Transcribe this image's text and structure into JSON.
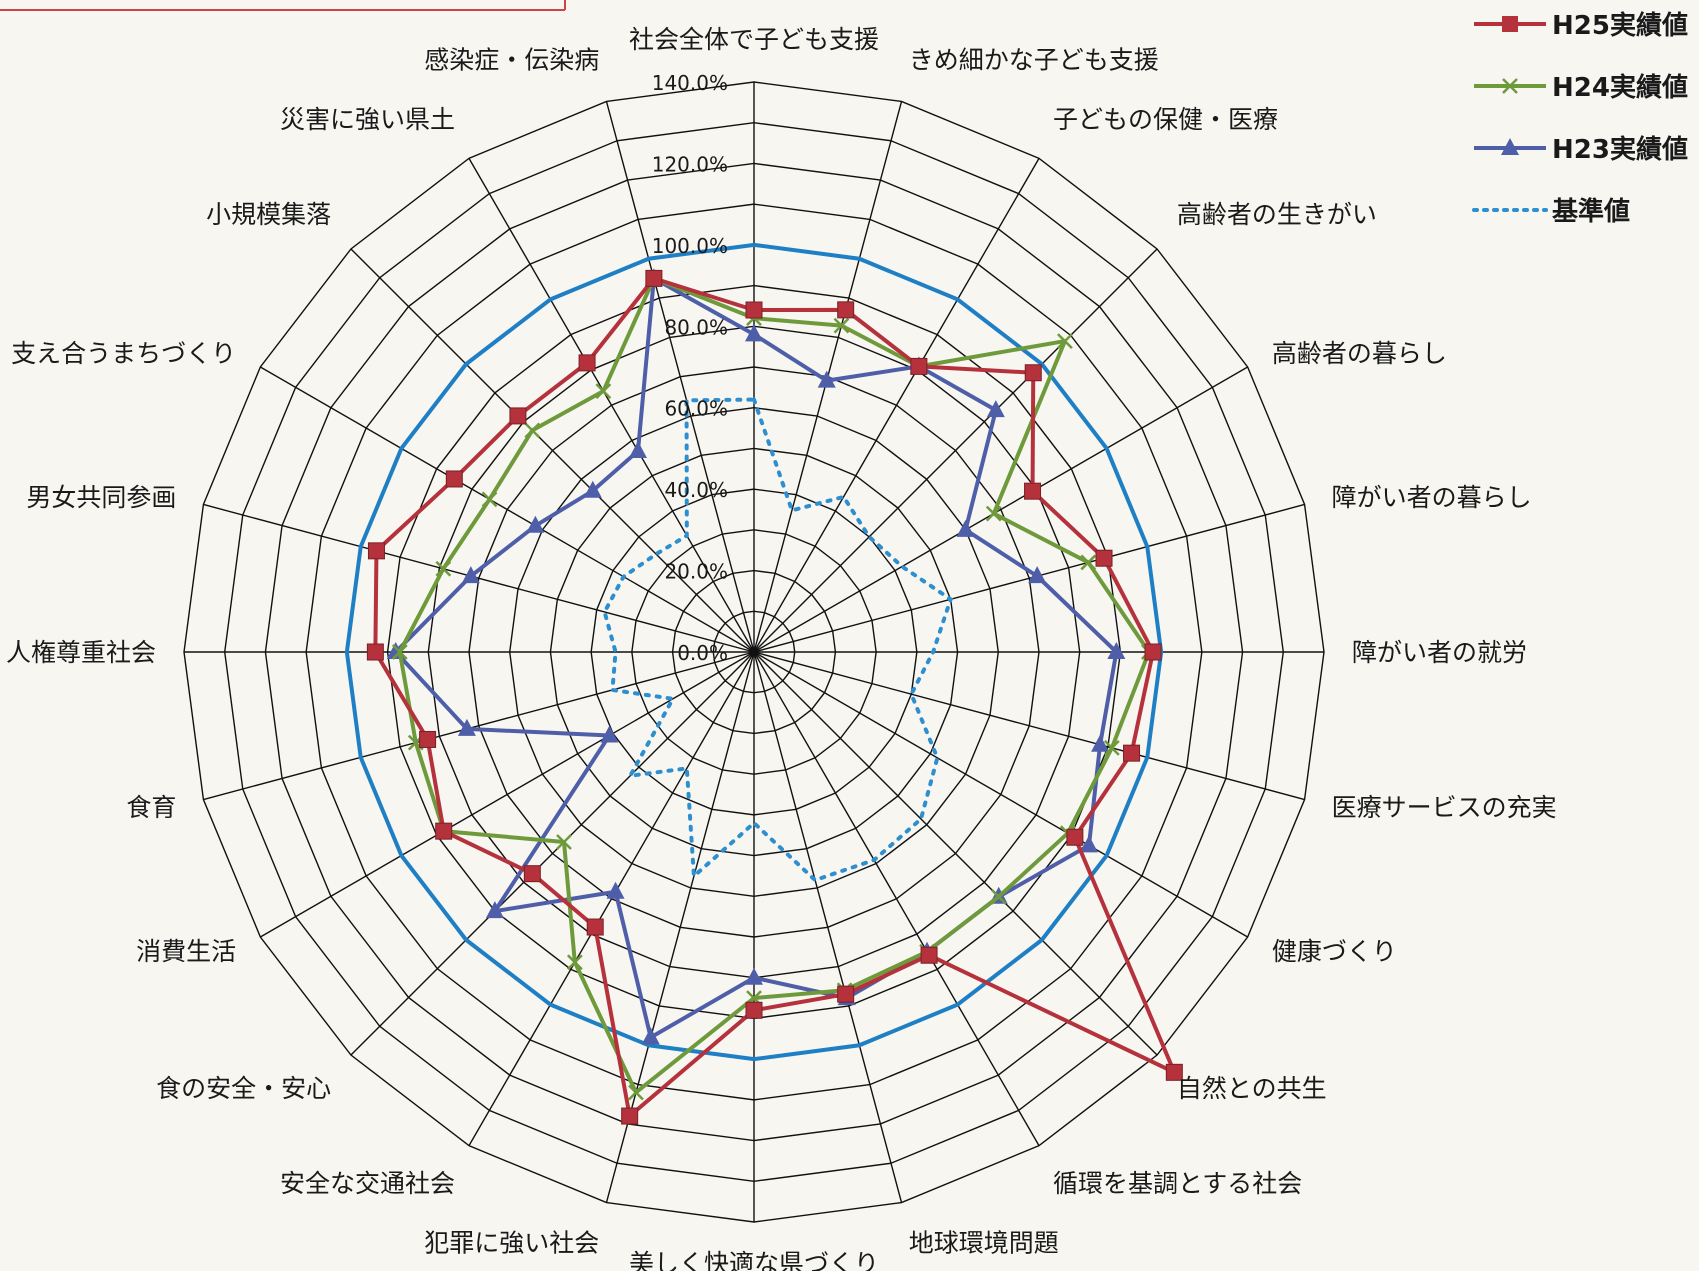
{
  "chart_data": {
    "type": "radar",
    "title": "",
    "categories": [
      "社会全体で子ども支援",
      "きめ細かな子ども支援",
      "子どもの保健・医療",
      "高齢者の生きがい",
      "高齢者の暮らし",
      "障がい者の暮らし",
      "障がい者の就労",
      "医療サービスの充実",
      "健康づくり",
      "自然との共生",
      "循環を基調とする社会",
      "地球環境問題",
      "美しく快適な県づくり",
      "犯罪に強い社会",
      "安全な交通社会",
      "食の安全・安心",
      "消費生活",
      "食育",
      "人権尊重社会",
      "男女共同参画",
      "支え合うまちづくり",
      "小規模集落",
      "災害に強い県土",
      "感染症・伝染病"
    ],
    "tick_labels": [
      "0.0%",
      "20.0%",
      "40.0%",
      "60.0%",
      "80.0%",
      "100.0%",
      "120.0%",
      "140.0%"
    ],
    "rmax": 140,
    "grid": true,
    "legend_position": "top-right",
    "series": [
      {
        "name": "H25実績値",
        "color": "#b5323c",
        "marker": "square",
        "values": [
          84,
          87,
          81,
          97,
          79,
          89,
          98,
          96,
          91,
          146,
          86,
          87,
          88,
          118,
          78,
          77,
          88,
          83,
          93,
          96,
          85,
          82,
          82,
          95
        ]
      },
      {
        "name": "H24実績値",
        "color": "#6f9a3c",
        "marker": "x",
        "values": [
          82,
          83,
          81,
          108,
          68,
          85,
          97,
          91,
          89,
          85,
          85,
          86,
          85,
          112,
          88,
          66,
          88,
          86,
          87,
          79,
          75,
          77,
          74,
          95
        ]
      },
      {
        "name": "H23実績値",
        "color": "#4f5ea8",
        "marker": "triangle",
        "values": [
          78,
          69,
          81,
          84,
          60,
          72,
          89,
          88,
          95,
          85,
          85,
          88,
          80,
          98,
          68,
          90,
          41,
          73,
          88,
          72,
          62,
          56,
          57,
          95
        ]
      },
      {
        "name": "基準値",
        "color": "#2e8fd0",
        "style": "dotted",
        "values": [
          62,
          36,
          44,
          40,
          42,
          50,
          44,
          40,
          52,
          58,
          59,
          58,
          42,
          57,
          33,
          43,
          23,
          36,
          34,
          38,
          37,
          34,
          33,
          64
        ]
      }
    ]
  }
}
